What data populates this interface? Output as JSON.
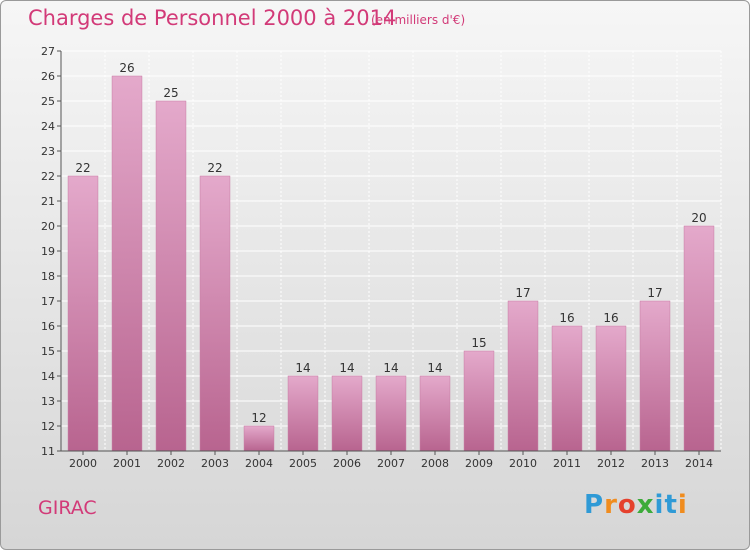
{
  "header": {
    "title": "Charges de Personnel 2000 à 2014",
    "subtitle": "(en milliers d'€)"
  },
  "footer": {
    "place": "GIRAC",
    "logo_text": "Proxiti"
  },
  "colors": {
    "accent": "#d23a78",
    "bar_top": "#e4a9cb",
    "bar_bottom": "#b8648f"
  },
  "chart_data": {
    "type": "bar",
    "title": "Charges de Personnel 2000 à 2014",
    "subtitle": "(en milliers d'€)",
    "xlabel": "",
    "ylabel": "",
    "categories": [
      "2000",
      "2001",
      "2002",
      "2003",
      "2004",
      "2005",
      "2006",
      "2007",
      "2008",
      "2009",
      "2010",
      "2011",
      "2012",
      "2013",
      "2014"
    ],
    "values": [
      22,
      26,
      25,
      22,
      12,
      14,
      14,
      14,
      14,
      15,
      17,
      16,
      16,
      17,
      20
    ],
    "ylim": [
      11,
      27
    ],
    "yticks": [
      11,
      12,
      13,
      14,
      15,
      16,
      17,
      18,
      19,
      20,
      21,
      22,
      23,
      24,
      25,
      26,
      27
    ],
    "grid": true,
    "legend": "none"
  }
}
